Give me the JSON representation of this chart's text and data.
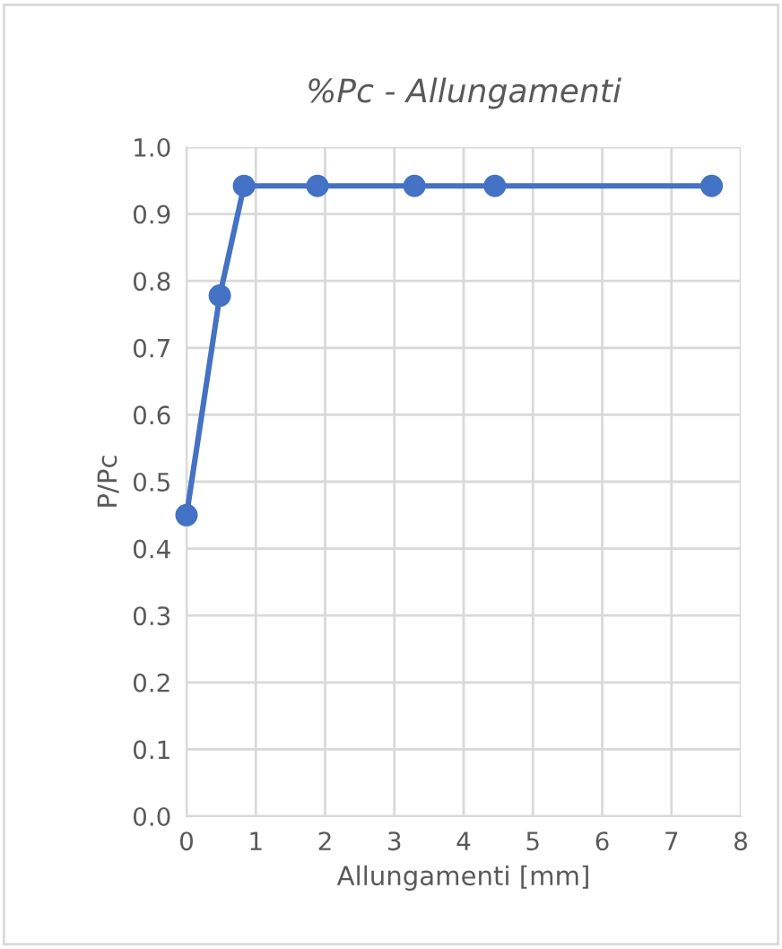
{
  "chart_data": {
    "type": "line",
    "title": "%Pc - Allungamenti",
    "xlabel": "Allungamenti [mm]",
    "ylabel": "P/Pc",
    "x": [
      0,
      0.48,
      0.83,
      1.89,
      3.29,
      4.45,
      7.58
    ],
    "series": [
      {
        "color": "#4472c4",
        "values": [
          0.45,
          0.778,
          0.942,
          0.942,
          0.942,
          0.942,
          0.942
        ]
      }
    ],
    "xlim": [
      0,
      8
    ],
    "xticks": [
      0,
      1,
      2,
      3,
      4,
      5,
      6,
      7,
      8
    ],
    "ylim": [
      0,
      1.0
    ],
    "yticks": [
      {
        "value": 0,
        "label": "0.0"
      },
      0.1,
      0.2,
      0.3,
      0.4,
      0.5,
      0.6,
      0.7,
      0.8,
      0.9,
      {
        "value": 1.0,
        "label": "1.0"
      }
    ],
    "grid": true,
    "marker": "circle",
    "line_style": "solid",
    "legend": false
  }
}
